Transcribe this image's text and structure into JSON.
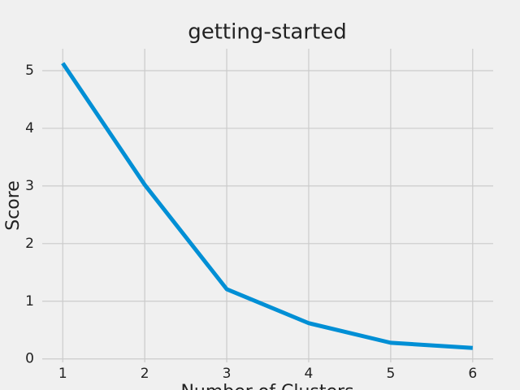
{
  "chart_data": {
    "type": "line",
    "title": "getting-started",
    "x_label": "Number of Clusters",
    "y_label": "Score",
    "x": [
      1,
      2,
      3,
      4,
      5,
      6
    ],
    "series": [
      {
        "name": "Score",
        "color": "#008fd5",
        "values": [
          5.13,
          3.02,
          1.21,
          0.62,
          0.28,
          0.19
        ]
      }
    ],
    "xlim": [
      0.75,
      6.25
    ],
    "ylim": [
      -0.06,
      5.38
    ],
    "xticks": [
      1,
      2,
      3,
      4,
      5,
      6
    ],
    "yticks": [
      0,
      1,
      2,
      3,
      4,
      5
    ],
    "grid": true
  }
}
